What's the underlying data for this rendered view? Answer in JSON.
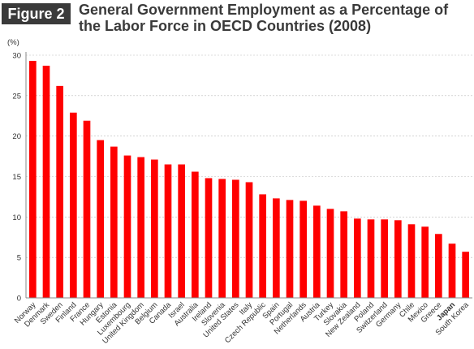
{
  "figure_label": "Figure 2",
  "title_lines": [
    "General Government Employment as a Percentage of",
    "the Labor Force in OECD Countries (2008)"
  ],
  "colors": {
    "bar": "#ff0000",
    "highlight_label": "#e00000",
    "axis": "#888888",
    "grid": "#bbbbbb"
  },
  "chart_data": {
    "type": "bar",
    "title": "General Government Employment as a Percentage of the Labor Force in OECD Countries (2008)",
    "ylabel": "(%)",
    "xlabel": "",
    "ylim": [
      0,
      30
    ],
    "yticks": [
      0,
      5,
      10,
      15,
      20,
      25,
      30
    ],
    "grid": true,
    "legend": "none",
    "highlight_category": "Japan",
    "categories": [
      "Norway",
      "Denmark",
      "Sweden",
      "Finland",
      "France",
      "Hungary",
      "Estonia",
      "Luxembourg",
      "United Kingdom",
      "Belgium",
      "Canada",
      "Israel",
      "Australia",
      "Ireland",
      "Slovenia",
      "United States",
      "Italy",
      "Czech Republic",
      "Spain",
      "Portugal",
      "Netherlands",
      "Austria",
      "Turkey",
      "Slovakia",
      "New Zealand",
      "Poland",
      "Switzerland",
      "Germany",
      "Chile",
      "Mexico",
      "Greece",
      "Japan",
      "South Korea"
    ],
    "values": [
      29.3,
      28.7,
      26.2,
      22.9,
      21.9,
      19.5,
      18.7,
      17.6,
      17.4,
      17.1,
      16.5,
      16.5,
      15.6,
      14.8,
      14.7,
      14.6,
      14.3,
      12.8,
      12.3,
      12.1,
      12.0,
      11.4,
      11.0,
      10.7,
      9.8,
      9.7,
      9.7,
      9.6,
      9.1,
      8.8,
      7.9,
      6.7,
      5.7
    ]
  }
}
